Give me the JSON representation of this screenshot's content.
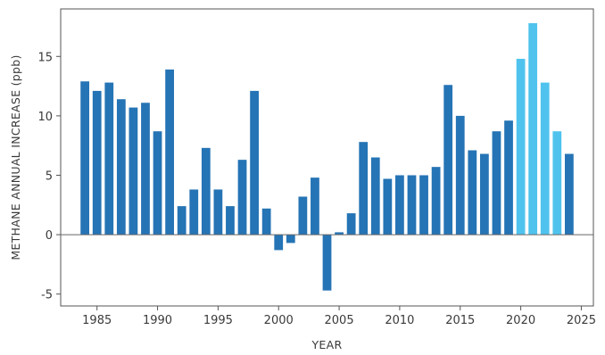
{
  "chart_data": {
    "type": "bar",
    "title": "",
    "xlabel": "YEAR",
    "ylabel": "METHANE ANNUAL INCREASE (ppb)",
    "x": [
      1984,
      1985,
      1986,
      1987,
      1988,
      1989,
      1990,
      1991,
      1992,
      1993,
      1994,
      1995,
      1996,
      1997,
      1998,
      1999,
      2000,
      2001,
      2002,
      2003,
      2004,
      2005,
      2006,
      2007,
      2008,
      2009,
      2010,
      2011,
      2012,
      2013,
      2014,
      2015,
      2016,
      2017,
      2018,
      2019,
      2020,
      2021,
      2022,
      2023,
      2024
    ],
    "values": [
      12.9,
      12.1,
      12.8,
      11.4,
      10.7,
      11.1,
      8.7,
      13.9,
      2.4,
      3.8,
      7.3,
      3.8,
      2.4,
      6.3,
      12.1,
      2.2,
      -1.3,
      -0.7,
      3.2,
      4.8,
      -4.7,
      0.2,
      1.8,
      7.8,
      6.5,
      4.7,
      5.0,
      5.0,
      5.0,
      5.7,
      12.6,
      10.0,
      7.1,
      6.8,
      8.7,
      9.6,
      14.8,
      17.8,
      12.8,
      8.7,
      6.8
    ],
    "series_colors": [
      "#2574b5",
      "#2574b5",
      "#2574b5",
      "#2574b5",
      "#2574b5",
      "#2574b5",
      "#2574b5",
      "#2574b5",
      "#2574b5",
      "#2574b5",
      "#2574b5",
      "#2574b5",
      "#2574b5",
      "#2574b5",
      "#2574b5",
      "#2574b5",
      "#2574b5",
      "#2574b5",
      "#2574b5",
      "#2574b5",
      "#2574b5",
      "#2574b5",
      "#2574b5",
      "#2574b5",
      "#2574b5",
      "#2574b5",
      "#2574b5",
      "#2574b5",
      "#2574b5",
      "#2574b5",
      "#2574b5",
      "#2574b5",
      "#2574b5",
      "#2574b5",
      "#2574b5",
      "#2574b5",
      "#4fc3ee",
      "#4fc3ee",
      "#4fc3ee",
      "#4fc3ee",
      "#2574b5"
    ],
    "xlim": [
      1982,
      2026
    ],
    "ylim": [
      -6,
      19
    ],
    "xticks": [
      1985,
      1990,
      1995,
      2000,
      2005,
      2010,
      2015,
      2020,
      2025
    ],
    "yticks": [
      -5,
      0,
      5,
      10,
      15
    ],
    "grid": false,
    "legend": "none"
  },
  "colors": {
    "bar": "#2574b5",
    "bar_highlight": "#4fc3ee",
    "zero_line": "#666666",
    "frame": "#555555"
  }
}
